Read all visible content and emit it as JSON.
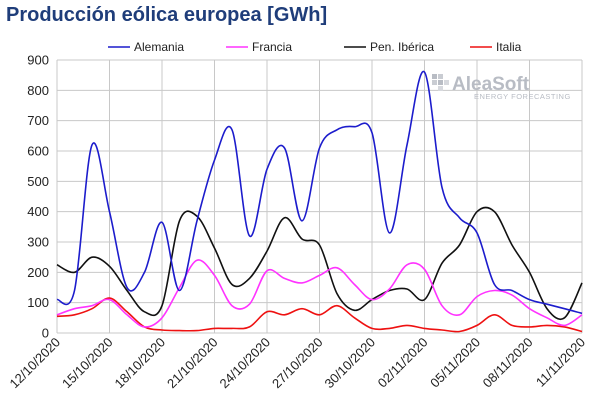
{
  "title": "Producción eólica europea [GWh]",
  "logo": {
    "name": "AleaSoft",
    "tagline": "ENERGY FORECASTING"
  },
  "chart_data": {
    "type": "line",
    "title": "Producción eólica europea [GWh]",
    "ylim": [
      0,
      900
    ],
    "yticks": [
      0,
      100,
      200,
      300,
      400,
      500,
      600,
      700,
      800,
      900
    ],
    "x": [
      0,
      1,
      2,
      3,
      4,
      5,
      6,
      7,
      8,
      9,
      10,
      11,
      12,
      13,
      14,
      15,
      16,
      17,
      18,
      19,
      20,
      21,
      22,
      23,
      24,
      25,
      26,
      27,
      28,
      29,
      30
    ],
    "xlabels": [
      "12/10/2020",
      "15/10/2020",
      "18/10/2020",
      "21/10/2020",
      "24/10/2020",
      "27/10/2020",
      "30/10/2020",
      "02/11/2020",
      "05/11/2020",
      "08/11/2020",
      "11/11/2020"
    ],
    "xlabel_positions": [
      0,
      3,
      6,
      9,
      12,
      15,
      18,
      21,
      24,
      27,
      30
    ],
    "grid": true,
    "legend_position": "top",
    "series": [
      {
        "name": "Alemania",
        "color": "#1c1ccc",
        "values": [
          110,
          140,
          620,
          400,
          150,
          200,
          365,
          140,
          370,
          570,
          670,
          320,
          540,
          610,
          370,
          610,
          670,
          680,
          660,
          330,
          620,
          860,
          480,
          380,
          330,
          160,
          140,
          110,
          95,
          80,
          65
        ]
      },
      {
        "name": "Francia",
        "color": "#ff33ff",
        "values": [
          60,
          80,
          90,
          110,
          60,
          20,
          50,
          150,
          240,
          190,
          90,
          95,
          205,
          180,
          165,
          190,
          215,
          160,
          110,
          145,
          225,
          210,
          90,
          60,
          120,
          140,
          125,
          80,
          50,
          25,
          60
        ]
      },
      {
        "name": "Pen. Ibérica",
        "color": "#111111",
        "values": [
          225,
          200,
          250,
          220,
          140,
          70,
          90,
          370,
          385,
          280,
          160,
          180,
          270,
          380,
          310,
          290,
          130,
          75,
          110,
          140,
          145,
          110,
          230,
          290,
          400,
          400,
          290,
          200,
          80,
          50,
          165
        ]
      },
      {
        "name": "Italia",
        "color": "#ee1111",
        "values": [
          55,
          60,
          80,
          115,
          70,
          20,
          10,
          8,
          8,
          15,
          15,
          20,
          70,
          60,
          80,
          60,
          90,
          50,
          15,
          15,
          25,
          15,
          10,
          5,
          25,
          60,
          25,
          20,
          25,
          20,
          5
        ]
      }
    ]
  }
}
